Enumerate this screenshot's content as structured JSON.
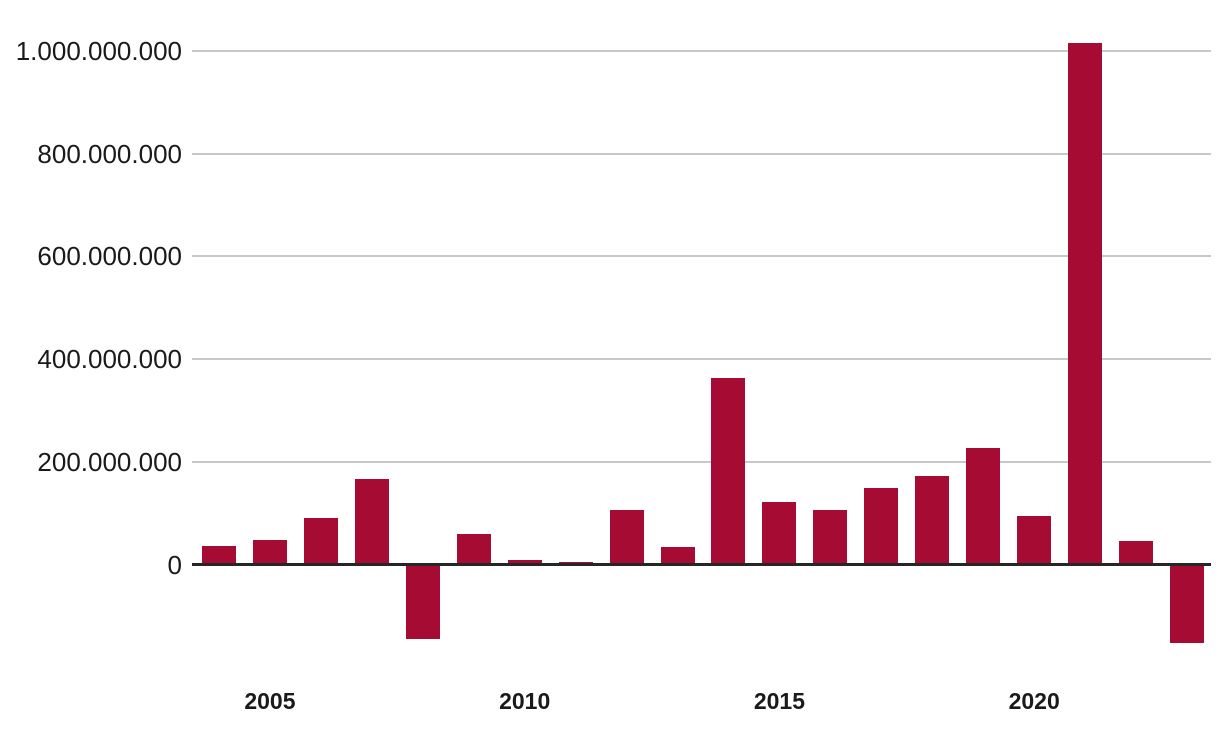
{
  "chart_data": {
    "type": "bar",
    "title": "",
    "xlabel": "",
    "ylabel": "",
    "legend": false,
    "grid": true,
    "number_format": "european-dot-separators",
    "categories": [
      "2004",
      "2005",
      "2006",
      "2007",
      "2008",
      "2009",
      "2010",
      "2011",
      "2012",
      "2013",
      "2014",
      "2015",
      "2016",
      "2017",
      "2018",
      "2019",
      "2020",
      "2021",
      "2022",
      "2023"
    ],
    "values": [
      36000000,
      48000000,
      90000000,
      166000000,
      -146000000,
      59000000,
      9000000,
      4000000,
      107000000,
      34000000,
      363000000,
      121000000,
      107000000,
      149000000,
      172000000,
      226000000,
      95000000,
      1015000000,
      46000000,
      -152000000
    ],
    "y_ticks": [
      {
        "value": 0,
        "label": "0"
      },
      {
        "value": 200000000,
        "label": "200.000.000"
      },
      {
        "value": 400000000,
        "label": "400.000.000"
      },
      {
        "value": 600000000,
        "label": "600.000.000"
      },
      {
        "value": 800000000,
        "label": "800.000.000"
      },
      {
        "value": 1000000000,
        "label": "1.000.000.000"
      }
    ],
    "x_ticks": [
      {
        "category": "2005",
        "label": "2005"
      },
      {
        "category": "2010",
        "label": "2010"
      },
      {
        "category": "2015",
        "label": "2015"
      },
      {
        "category": "2020",
        "label": "2020"
      }
    ],
    "ylim": [
      -200000000,
      1060000000
    ],
    "colors": {
      "bar": "#A60C33",
      "gridline": "#C8C8C8",
      "zero_line": "#262626",
      "text": "#1A1A1A",
      "background": "#FFFFFF"
    }
  }
}
